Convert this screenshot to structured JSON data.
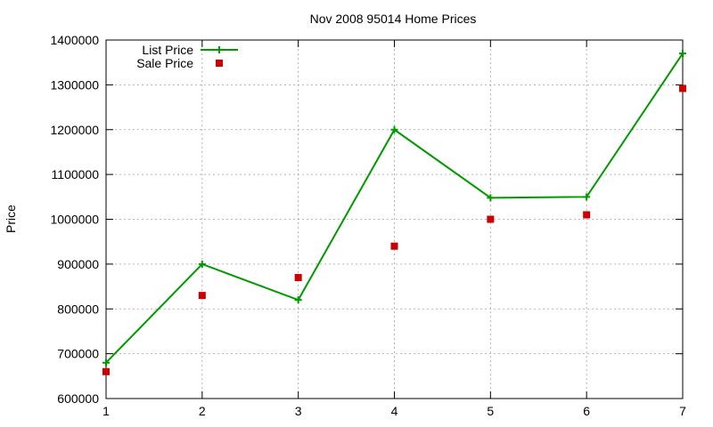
{
  "chart_data": {
    "type": "line",
    "title": "Nov 2008 95014 Home Prices",
    "xlabel": "",
    "ylabel": "Price",
    "x": [
      1,
      2,
      3,
      4,
      5,
      6,
      7
    ],
    "xlim": [
      1,
      7
    ],
    "ylim": [
      600000,
      1400000
    ],
    "x_ticks": [
      "1",
      "2",
      "3",
      "4",
      "5",
      "6",
      "7"
    ],
    "y_ticks": [
      "600000",
      "700000",
      "800000",
      "900000",
      "1000000",
      "1100000",
      "1200000",
      "1300000",
      "1400000"
    ],
    "grid": true,
    "legend_position": "top-left",
    "series": [
      {
        "name": "List Price",
        "style": "linespoints",
        "marker": "plus",
        "color": "#009900",
        "values": [
          680000,
          900000,
          820000,
          1200000,
          1048000,
          1050000,
          1370000
        ]
      },
      {
        "name": "Sale Price",
        "style": "points",
        "marker": "square",
        "color": "#cc0000",
        "values": [
          660000,
          830000,
          870000,
          940000,
          1000000,
          1010000,
          1292000
        ]
      }
    ]
  }
}
